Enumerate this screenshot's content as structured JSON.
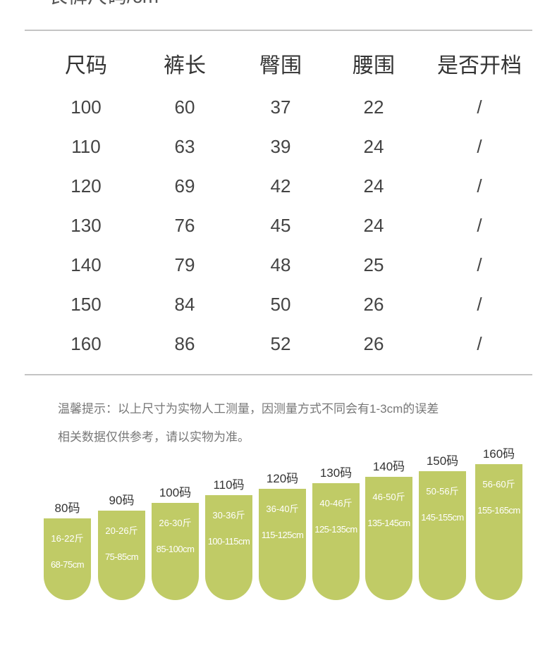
{
  "title": "长裤尺码/cm",
  "table": {
    "headers": [
      "尺码",
      "裤长",
      "臀围",
      "腰围",
      "是否开档"
    ],
    "rows": [
      [
        100,
        60,
        37,
        22,
        "/"
      ],
      [
        110,
        63,
        39,
        24,
        "/"
      ],
      [
        120,
        69,
        42,
        24,
        "/"
      ],
      [
        130,
        76,
        45,
        24,
        "/"
      ],
      [
        140,
        79,
        48,
        25,
        "/"
      ],
      [
        150,
        84,
        50,
        26,
        "/"
      ],
      [
        160,
        86,
        52,
        26,
        "/"
      ]
    ]
  },
  "notes": [
    "温馨提示：以上尺寸为实物人工测量，因测量方式不同会有1-3cm的误差",
    "相关数据仅供参考，请以实物为准。"
  ],
  "sizes": [
    {
      "label": "80码",
      "weight": "16-22斤",
      "height": "68-75cm"
    },
    {
      "label": "90码",
      "weight": "20-26斤",
      "height": "75-85cm"
    },
    {
      "label": "100码",
      "weight": "26-30斤",
      "height": "85-100cm"
    },
    {
      "label": "110码",
      "weight": "30-36斤",
      "height": "100-115cm"
    },
    {
      "label": "120码",
      "weight": "36-40斤",
      "height": "115-125cm"
    },
    {
      "label": "130码",
      "weight": "40-46斤",
      "height": "125-135cm"
    },
    {
      "label": "140码",
      "weight": "46-50斤",
      "height": "135-145cm"
    },
    {
      "label": "150码",
      "weight": "50-56斤",
      "height": "145-155cm"
    },
    {
      "label": "160码",
      "weight": "56-60斤",
      "height": "155-165cm"
    }
  ]
}
